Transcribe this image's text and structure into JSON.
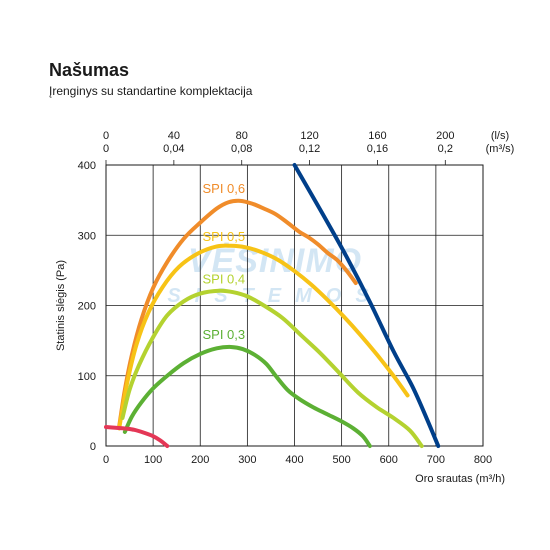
{
  "header": {
    "title": "Našumas",
    "subtitle": "Įrenginys su standartine komplektacija"
  },
  "watermark": {
    "line1": "VĖSINIMO",
    "line2": "SISTEMOS"
  },
  "chart_data": {
    "type": "line",
    "xlabel": "Oro srautas (m³/h)",
    "ylabel": "Statinis slėgis (Pa)",
    "xlim": [
      0,
      800
    ],
    "ylim": [
      0,
      400
    ],
    "x_ticks": [
      0,
      100,
      200,
      300,
      400,
      500,
      600,
      700,
      800
    ],
    "y_ticks": [
      0,
      100,
      200,
      300,
      400
    ],
    "top_axis": {
      "ls_ticks": [
        "0",
        "40",
        "80",
        "120",
        "160",
        "200"
      ],
      "ls_unit": "(l/s)",
      "m3s_ticks": [
        "0",
        "0,04",
        "0,08",
        "0,12",
        "0,16",
        "0,2"
      ],
      "m3s_unit": "(m³/s)",
      "positions_m3h": [
        0,
        144,
        288,
        432,
        576,
        720
      ]
    },
    "grid": true,
    "series": [
      {
        "name": "SPI 0,6",
        "color": "#f08c2a",
        "points": [
          [
            28,
            28
          ],
          [
            40,
            80
          ],
          [
            55,
            130
          ],
          [
            75,
            180
          ],
          [
            100,
            225
          ],
          [
            130,
            262
          ],
          [
            165,
            295
          ],
          [
            200,
            318
          ],
          [
            235,
            338
          ],
          [
            260,
            347
          ],
          [
            285,
            349
          ],
          [
            310,
            345
          ],
          [
            335,
            338
          ],
          [
            360,
            330
          ],
          [
            385,
            318
          ],
          [
            410,
            305
          ],
          [
            430,
            297
          ],
          [
            450,
            287
          ],
          [
            470,
            275
          ],
          [
            490,
            265
          ],
          [
            510,
            250
          ],
          [
            530,
            232
          ]
        ],
        "label_pos": [
          250,
          360
        ]
      },
      {
        "name": "SPI 0,5",
        "color": "#f7c316",
        "points": [
          [
            28,
            25
          ],
          [
            45,
            90
          ],
          [
            65,
            145
          ],
          [
            90,
            190
          ],
          [
            120,
            226
          ],
          [
            155,
            255
          ],
          [
            195,
            274
          ],
          [
            235,
            284
          ],
          [
            265,
            285
          ],
          [
            295,
            283
          ],
          [
            330,
            276
          ],
          [
            365,
            265
          ],
          [
            400,
            249
          ],
          [
            435,
            230
          ],
          [
            470,
            208
          ],
          [
            505,
            184
          ],
          [
            540,
            158
          ],
          [
            575,
            130
          ],
          [
            610,
            100
          ],
          [
            640,
            72
          ]
        ],
        "label_pos": [
          250,
          292
        ]
      },
      {
        "name": "SPI 0,4",
        "color": "#b4d230",
        "points": [
          [
            35,
            40
          ],
          [
            50,
            80
          ],
          [
            70,
            115
          ],
          [
            100,
            155
          ],
          [
            130,
            186
          ],
          [
            165,
            206
          ],
          [
            200,
            217
          ],
          [
            240,
            221
          ],
          [
            270,
            219
          ],
          [
            300,
            213
          ],
          [
            335,
            200
          ],
          [
            375,
            182
          ],
          [
            415,
            157
          ],
          [
            455,
            132
          ],
          [
            495,
            104
          ],
          [
            535,
            76
          ],
          [
            575,
            55
          ],
          [
            610,
            40
          ],
          [
            645,
            22
          ],
          [
            670,
            0
          ]
        ],
        "label_pos": [
          250,
          231
        ]
      },
      {
        "name": "SPI 0,3",
        "color": "#5cb034",
        "points": [
          [
            40,
            20
          ],
          [
            55,
            42
          ],
          [
            75,
            62
          ],
          [
            100,
            82
          ],
          [
            130,
            100
          ],
          [
            165,
            118
          ],
          [
            200,
            131
          ],
          [
            235,
            139
          ],
          [
            265,
            141
          ],
          [
            290,
            138
          ],
          [
            315,
            130
          ],
          [
            340,
            117
          ],
          [
            360,
            100
          ],
          [
            385,
            80
          ],
          [
            410,
            67
          ],
          [
            440,
            55
          ],
          [
            470,
            45
          ],
          [
            500,
            35
          ],
          [
            525,
            25
          ],
          [
            545,
            14
          ],
          [
            560,
            0
          ]
        ],
        "label_pos": [
          250,
          152
        ]
      },
      {
        "name": "",
        "color": "#003f8a",
        "points": [
          [
            400,
            400
          ],
          [
            460,
            330
          ],
          [
            510,
            270
          ],
          [
            560,
            205
          ],
          [
            610,
            135
          ],
          [
            650,
            85
          ],
          [
            680,
            40
          ],
          [
            705,
            0
          ]
        ],
        "label_pos": null
      },
      {
        "name": "",
        "color": "#e43756",
        "points": [
          [
            0,
            27
          ],
          [
            20,
            26
          ],
          [
            40,
            25
          ],
          [
            60,
            23
          ],
          [
            80,
            19
          ],
          [
            100,
            14
          ],
          [
            115,
            8
          ],
          [
            130,
            0
          ]
        ],
        "label_pos": null
      }
    ]
  }
}
